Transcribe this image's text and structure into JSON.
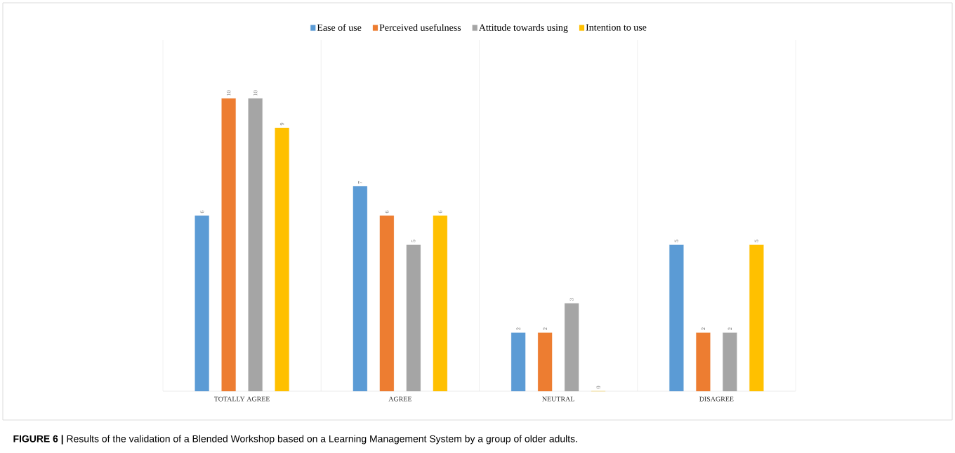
{
  "chart_data": {
    "type": "bar",
    "categories": [
      "TOTALLY AGREE",
      "AGREE",
      "NEUTRAL",
      "DISAGREE"
    ],
    "series": [
      {
        "name": "Ease of use",
        "color": "#5b9bd5",
        "values": [
          6,
          7,
          2,
          5
        ]
      },
      {
        "name": "Perceived usefulness",
        "color": "#ed7d31",
        "values": [
          10,
          6,
          2,
          2
        ]
      },
      {
        "name": "Attitude towards using",
        "color": "#a5a5a5",
        "values": [
          10,
          5,
          3,
          2
        ]
      },
      {
        "name": "Intention to use",
        "color": "#ffc000",
        "values": [
          9,
          6,
          0,
          5
        ]
      }
    ],
    "ylim": [
      0,
      12
    ],
    "tick_labels": "x",
    "data_labels": true,
    "grid": "x",
    "legend": "top",
    "annotations": [
      "**FIGURE 6 |** Results of the validation of a Blended Workshop based on a Learning Management System by a group of older adults."
    ]
  }
}
